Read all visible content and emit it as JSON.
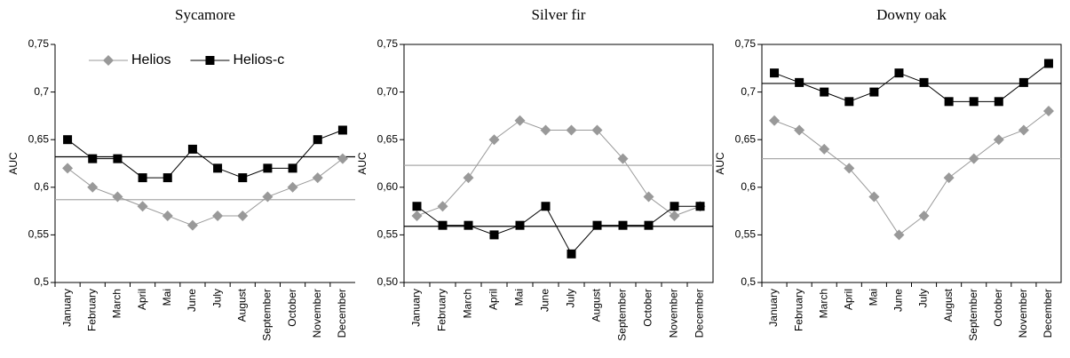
{
  "chart_data": [
    {
      "type": "line",
      "title": "Sycamore",
      "ylabel": "AUC",
      "categories": [
        "January",
        "February",
        "March",
        "April",
        "Mai",
        "June",
        "July",
        "August",
        "September",
        "October",
        "November",
        "December"
      ],
      "series": [
        {
          "name": "Helios",
          "color": "#999999",
          "marker": "diamond",
          "values": [
            0.62,
            0.6,
            0.59,
            0.58,
            0.57,
            0.56,
            0.57,
            0.57,
            0.59,
            0.6,
            0.61,
            0.63
          ]
        },
        {
          "name": "Helios-c",
          "color": "#000000",
          "marker": "square",
          "values": [
            0.65,
            0.63,
            0.63,
            0.61,
            0.61,
            0.64,
            0.62,
            0.61,
            0.62,
            0.62,
            0.65,
            0.66
          ]
        }
      ],
      "hlines": [
        {
          "value": 0.587,
          "color": "#aaaaaa"
        },
        {
          "value": 0.632,
          "color": "#000000"
        }
      ],
      "ylim": [
        0.5,
        0.75
      ],
      "yticks": [
        {
          "value": 0.5,
          "label": "0,5"
        },
        {
          "value": 0.55,
          "label": "0,55"
        },
        {
          "value": 0.6,
          "label": "0,6"
        },
        {
          "value": 0.65,
          "label": "0,65"
        },
        {
          "value": 0.7,
          "label": "0,7"
        },
        {
          "value": 0.75,
          "label": "0,75"
        }
      ],
      "legend": "top"
    },
    {
      "type": "line",
      "title": "Silver fir",
      "ylabel": "AUC",
      "categories": [
        "January",
        "February",
        "March",
        "April",
        "Mai",
        "June",
        "July",
        "August",
        "September",
        "October",
        "November",
        "December"
      ],
      "series": [
        {
          "color": "#999999",
          "marker": "diamond",
          "values": [
            0.57,
            0.58,
            0.61,
            0.65,
            0.67,
            0.66,
            0.66,
            0.66,
            0.63,
            0.59,
            0.57,
            0.58
          ]
        },
        {
          "color": "#000000",
          "marker": "square",
          "values": [
            0.58,
            0.56,
            0.56,
            0.55,
            0.56,
            0.58,
            0.53,
            0.56,
            0.56,
            0.56,
            0.58,
            0.58
          ]
        }
      ],
      "hlines": [
        {
          "value": 0.623,
          "color": "#aaaaaa"
        },
        {
          "value": 0.559,
          "color": "#000000"
        }
      ],
      "ylim": [
        0.5,
        0.75
      ],
      "yticks": [
        {
          "value": 0.5,
          "label": "0,50"
        },
        {
          "value": 0.55,
          "label": "0,55"
        },
        {
          "value": 0.6,
          "label": "0,60"
        },
        {
          "value": 0.65,
          "label": "0,65"
        },
        {
          "value": 0.7,
          "label": "0,70"
        },
        {
          "value": 0.75,
          "label": "0,75"
        }
      ]
    },
    {
      "type": "line",
      "title": "Downy oak",
      "ylabel": "AUC",
      "categories": [
        "January",
        "February",
        "March",
        "April",
        "Mai",
        "June",
        "July",
        "August",
        "September",
        "October",
        "November",
        "December"
      ],
      "series": [
        {
          "color": "#999999",
          "marker": "diamond",
          "values": [
            0.67,
            0.66,
            0.64,
            0.62,
            0.59,
            0.55,
            0.57,
            0.61,
            0.63,
            0.65,
            0.66,
            0.68
          ]
        },
        {
          "color": "#000000",
          "marker": "square",
          "values": [
            0.72,
            0.71,
            0.7,
            0.69,
            0.7,
            0.72,
            0.71,
            0.69,
            0.69,
            0.69,
            0.71,
            0.73
          ]
        }
      ],
      "hlines": [
        {
          "value": 0.63,
          "color": "#aaaaaa"
        },
        {
          "value": 0.709,
          "color": "#000000"
        }
      ],
      "ylim": [
        0.5,
        0.75
      ],
      "yticks": [
        {
          "value": 0.5,
          "label": "0,5"
        },
        {
          "value": 0.55,
          "label": "0,55"
        },
        {
          "value": 0.6,
          "label": "0,6"
        },
        {
          "value": 0.65,
          "label": "0,65"
        },
        {
          "value": 0.7,
          "label": "0,7"
        },
        {
          "value": 0.75,
          "label": "0,75"
        }
      ]
    }
  ]
}
